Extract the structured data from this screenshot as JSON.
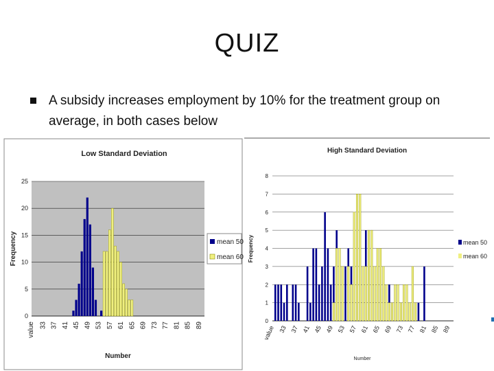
{
  "slide": {
    "title": "QUIZ",
    "bullet": "A subsidy increases employment by 10% for the treatment group on average, in both cases below"
  },
  "colors": {
    "blue": "#00008b",
    "yellow": "#f0f080",
    "yellow_edge": "#8b8b00",
    "plot_bg_left": "#c0c0c0",
    "grid": "#222222"
  },
  "chart_data": [
    {
      "type": "bar",
      "title": "Low Standard Deviation",
      "xlabel": "Number",
      "ylabel": "Frequency",
      "first_tick_label": "value",
      "tick_labels": [
        "33",
        "37",
        "41",
        "45",
        "49",
        "53",
        "57",
        "61",
        "65",
        "69",
        "73",
        "77",
        "81",
        "85",
        "89"
      ],
      "ylim": [
        0,
        25
      ],
      "yticks": [
        0,
        5,
        10,
        15,
        20,
        25
      ],
      "x_range": [
        29,
        91
      ],
      "series": [
        {
          "name": "mean 50",
          "x": [
            44,
            45,
            46,
            47,
            48,
            49,
            50,
            51,
            52,
            54
          ],
          "values": [
            1,
            3,
            6,
            12,
            18,
            22,
            17,
            9,
            3,
            1
          ]
        },
        {
          "name": "mean 60",
          "x": [
            55,
            56,
            57,
            58,
            59,
            60,
            61,
            62,
            63,
            64,
            65
          ],
          "values": [
            12,
            12,
            16,
            20,
            13,
            12,
            10,
            6,
            5,
            3,
            3
          ]
        }
      ],
      "legend": "right"
    },
    {
      "type": "bar",
      "title": "High Standard Deviation",
      "xlabel": "Number",
      "ylabel": "Frequency",
      "first_tick_label": "value",
      "tick_labels": [
        "33",
        "37",
        "41",
        "45",
        "49",
        "53",
        "57",
        "61",
        "65",
        "69",
        "73",
        "77",
        "81",
        "85",
        "89"
      ],
      "ylim": [
        0,
        8
      ],
      "yticks": [
        0,
        1,
        2,
        3,
        4,
        5,
        6,
        7,
        8
      ],
      "x_range": [
        29,
        91
      ],
      "series": [
        {
          "name": "mean 50",
          "x": [
            30,
            31,
            32,
            33,
            34,
            36,
            37,
            38,
            41,
            42,
            43,
            44,
            45,
            46,
            47,
            48,
            49,
            50,
            51,
            52,
            53,
            54,
            55,
            56,
            57,
            58,
            59,
            60,
            61,
            62,
            63,
            64,
            65,
            66,
            67,
            69,
            70,
            71,
            73,
            76,
            78,
            79,
            81
          ],
          "values": [
            2,
            2,
            2,
            1,
            2,
            2,
            2,
            1,
            3,
            1,
            4,
            4,
            2,
            3,
            6,
            4,
            2,
            3,
            5,
            1,
            1,
            3,
            4,
            3,
            3,
            1,
            6,
            3,
            5,
            3,
            3,
            2,
            3,
            2,
            2,
            2,
            1,
            2,
            1,
            1,
            1,
            1,
            3
          ]
        },
        {
          "name": "mean 60",
          "x": [
            50,
            51,
            52,
            53,
            55,
            56,
            57,
            58,
            59,
            60,
            61,
            62,
            63,
            64,
            65,
            66,
            67,
            68,
            69,
            70,
            71,
            72,
            73,
            74,
            75,
            76,
            77,
            78
          ],
          "values": [
            1,
            4,
            4,
            3,
            3,
            2,
            6,
            7,
            7,
            3,
            3,
            5,
            5,
            3,
            4,
            4,
            3,
            2,
            1,
            1,
            2,
            2,
            1,
            2,
            2,
            1,
            3,
            1
          ]
        }
      ],
      "legend": "right"
    }
  ]
}
